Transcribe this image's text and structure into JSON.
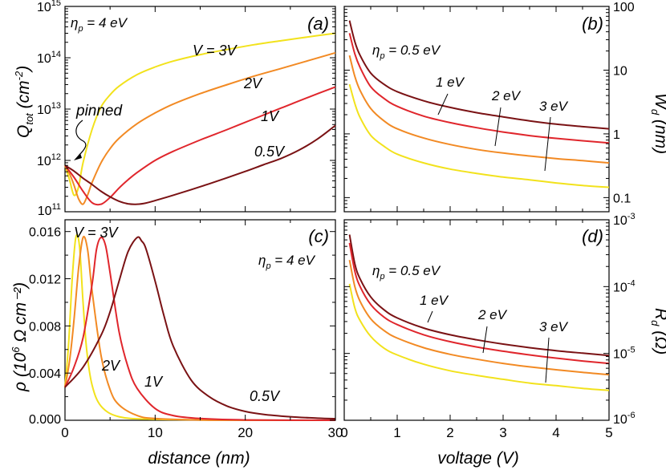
{
  "colors": {
    "yellow": "#f2e21c",
    "orange": "#f28a24",
    "red": "#e0262c",
    "maroon": "#7a1214"
  },
  "xlabel_left": "distance (nm)",
  "xlabel_right": "voltage (V)",
  "chart_data": [
    {
      "id": "a",
      "type": "line",
      "panel_label": "(a)",
      "title": "",
      "xlim": [
        0,
        30
      ],
      "ylim": [
        100000000000,
        1000000000000000
      ],
      "yscale": "log",
      "ylabel": {
        "main": "Q",
        "sub": "tot",
        "mid": " (cm",
        "sup": "-2",
        "end": ")"
      },
      "x_ticks": [
        0,
        10,
        20,
        30
      ],
      "y_ticks": [
        {
          "value": 100000000000,
          "base": "10",
          "exp": "11"
        },
        {
          "value": 1000000000000,
          "base": "10",
          "exp": "12"
        },
        {
          "value": 10000000000000,
          "base": "10",
          "exp": "13"
        },
        {
          "value": 100000000000000,
          "base": "10",
          "exp": "14"
        },
        {
          "value": 1000000000000000,
          "base": "10",
          "exp": "15"
        }
      ],
      "param": {
        "sym": "η",
        "sub": "p",
        "rest": " = 4 eV"
      },
      "annotations": {
        "pinned": "pinned"
      },
      "series": [
        {
          "name": "V = 3V",
          "label": "V = 3V",
          "color": "yellow",
          "x": [
            0,
            0.5,
            1,
            1.5,
            2,
            3,
            4,
            5,
            6,
            8,
            10,
            12,
            15,
            18,
            21,
            24,
            27,
            30
          ],
          "y": [
            800000000000,
            420000000000,
            210000000000,
            300000000000,
            900000000000,
            4000000000000,
            11000000000000,
            19000000000000,
            28000000000000,
            47000000000000,
            66000000000000,
            86000000000000,
            115000000000000,
            145000000000000,
            180000000000000,
            215000000000000,
            255000000000000,
            300000000000000
          ]
        },
        {
          "name": "2V",
          "label": "2V",
          "color": "orange",
          "x": [
            0,
            0.5,
            1,
            1.5,
            2,
            2.5,
            3,
            4,
            5,
            6,
            8,
            10,
            12,
            15,
            18,
            21,
            24,
            27,
            30
          ],
          "y": [
            800000000000,
            550000000000,
            330000000000,
            180000000000,
            140000000000,
            210000000000,
            370000000000,
            900000000000,
            1700000000000,
            2700000000000,
            5200000000000,
            8400000000000,
            12500000000000,
            20000000000000,
            30000000000000,
            44000000000000,
            62000000000000,
            88000000000000,
            125000000000000
          ]
        },
        {
          "name": "1V",
          "label": "1V",
          "color": "red",
          "x": [
            0,
            1,
            2,
            3,
            4,
            5,
            6,
            7,
            8,
            10,
            12,
            15,
            18,
            21,
            24,
            27,
            30
          ],
          "y": [
            800000000000,
            470000000000,
            250000000000,
            150000000000,
            140000000000,
            190000000000,
            290000000000,
            420000000000,
            580000000000,
            1000000000000,
            1500000000000,
            2500000000000,
            4000000000000,
            6500000000000,
            10500000000000,
            17000000000000,
            27000000000000
          ]
        },
        {
          "name": "0.5V",
          "label": "0.5V",
          "color": "maroon",
          "x": [
            0,
            1,
            2,
            3,
            4,
            5,
            6,
            7,
            8,
            9,
            10,
            12,
            14,
            16,
            18,
            20,
            22,
            24,
            26,
            28,
            30
          ],
          "y": [
            800000000000,
            620000000000,
            450000000000,
            340000000000,
            250000000000,
            195000000000,
            160000000000,
            143000000000,
            140000000000,
            148000000000,
            165000000000,
            210000000000,
            270000000000,
            350000000000,
            460000000000,
            610000000000,
            820000000000,
            1100000000000,
            1600000000000,
            2600000000000,
            4800000000000
          ]
        }
      ]
    },
    {
      "id": "b",
      "type": "line",
      "panel_label": "(b)",
      "title": "",
      "xlim": [
        0,
        5
      ],
      "ylim": [
        0.06,
        100
      ],
      "yscale": "log",
      "ylabel": {
        "main": "W",
        "sub": "d",
        "mid": " (nm)",
        "sup": "",
        "end": ""
      },
      "x_ticks": [
        0,
        1,
        2,
        3,
        4,
        5
      ],
      "y_ticks": [
        {
          "value": 0.1,
          "label": "0.1"
        },
        {
          "value": 1,
          "label": "1"
        },
        {
          "value": 10,
          "label": "10"
        },
        {
          "value": 100,
          "label": "100"
        }
      ],
      "param": {
        "sym": "η",
        "sub": "p",
        "rest": " = 0.5 eV"
      },
      "series": [
        {
          "name": "0.5 eV",
          "color": "maroon",
          "x": [
            0.1,
            0.2,
            0.3,
            0.5,
            0.75,
            1,
            1.5,
            2,
            2.5,
            3,
            3.5,
            4,
            4.5,
            5
          ],
          "y": [
            60,
            28,
            17,
            9,
            6,
            4.6,
            3.3,
            2.6,
            2.15,
            1.85,
            1.6,
            1.42,
            1.3,
            1.2
          ]
        },
        {
          "name": "1 eV",
          "color": "red",
          "x": [
            0.1,
            0.2,
            0.3,
            0.5,
            0.75,
            1,
            1.5,
            2,
            2.5,
            3,
            3.5,
            4,
            4.5,
            5
          ],
          "y": [
            38,
            18,
            11,
            5.5,
            3.6,
            2.7,
            1.9,
            1.5,
            1.25,
            1.07,
            0.94,
            0.85,
            0.78,
            0.72
          ]
        },
        {
          "name": "2 eV",
          "color": "orange",
          "x": [
            0.1,
            0.2,
            0.3,
            0.5,
            0.75,
            1,
            1.5,
            2,
            2.5,
            3,
            3.5,
            4,
            4.5,
            5
          ],
          "y": [
            17,
            8,
            4.8,
            2.5,
            1.6,
            1.2,
            0.86,
            0.68,
            0.57,
            0.5,
            0.45,
            0.41,
            0.38,
            0.35
          ]
        },
        {
          "name": "3 eV",
          "color": "yellow",
          "x": [
            0.1,
            0.2,
            0.3,
            0.5,
            0.75,
            1,
            1.5,
            2,
            2.5,
            3,
            3.5,
            4,
            4.5,
            5
          ],
          "y": [
            6,
            3,
            1.8,
            0.95,
            0.64,
            0.48,
            0.35,
            0.28,
            0.24,
            0.21,
            0.19,
            0.17,
            0.155,
            0.145
          ]
        }
      ],
      "curve_labels": [
        {
          "text": "1 eV",
          "at": [
            1.7,
            2.6
          ]
        },
        {
          "text": "2 eV",
          "at": [
            2.65,
            1.3
          ]
        },
        {
          "text": "3 eV",
          "at": [
            3.8,
            0.55
          ]
        }
      ]
    },
    {
      "id": "c",
      "type": "line",
      "panel_label": "(c)",
      "title": "",
      "xlim": [
        0,
        30
      ],
      "ylim": [
        0,
        0.017
      ],
      "yscale": "linear",
      "ylabel": {
        "main": "ρ",
        "sub": "",
        "mid": " (10",
        "sup": "6",
        "end": " Ω cm⁻²)"
      },
      "x_ticks": [
        0,
        10,
        20,
        30
      ],
      "y_ticks": [
        {
          "value": 0,
          "label": "0.000"
        },
        {
          "value": 0.004,
          "label": "0.004"
        },
        {
          "value": 0.008,
          "label": "0.008"
        },
        {
          "value": 0.012,
          "label": "0.012"
        },
        {
          "value": 0.016,
          "label": "0.016"
        }
      ],
      "param": {
        "sym": "η",
        "sub": "p",
        "rest": " = 4 eV"
      },
      "series": [
        {
          "name": "V = 3V",
          "label": "V = 3V",
          "color": "yellow",
          "x": [
            0,
            0.4,
            0.8,
            1.2,
            1.6,
            2,
            2.4,
            3,
            4,
            6,
            10,
            20,
            30
          ],
          "y": [
            0.0028,
            0.0065,
            0.012,
            0.0155,
            0.0148,
            0.01,
            0.006,
            0.003,
            0.0012,
            0.0003,
            8e-05,
            1e-05,
            0
          ]
        },
        {
          "name": "2V",
          "label": "2V",
          "color": "orange",
          "x": [
            0,
            0.5,
            1,
            1.5,
            2,
            2.5,
            3,
            4,
            5,
            6,
            8,
            10,
            15,
            20,
            30
          ],
          "y": [
            0.0028,
            0.005,
            0.0085,
            0.0128,
            0.0155,
            0.0145,
            0.011,
            0.0055,
            0.0026,
            0.0013,
            0.0004,
            0.00015,
            2e-05,
            5e-06,
            0
          ]
        },
        {
          "name": "1V",
          "label": "1V",
          "color": "red",
          "x": [
            0,
            1,
            2,
            3,
            3.5,
            4,
            4.5,
            5,
            6,
            7,
            8,
            10,
            12,
            15,
            20,
            30
          ],
          "y": [
            0.0028,
            0.0045,
            0.007,
            0.0115,
            0.0145,
            0.0155,
            0.0148,
            0.0125,
            0.0075,
            0.0045,
            0.0027,
            0.001,
            0.0004,
            0.00015,
            3e-05,
            0
          ]
        },
        {
          "name": "0.5V",
          "label": "0.5V",
          "color": "maroon",
          "x": [
            0,
            2,
            4,
            5,
            6,
            7,
            8,
            8.5,
            9,
            10,
            11,
            12,
            14,
            16,
            18,
            20,
            22,
            25,
            28,
            30
          ],
          "y": [
            0.0028,
            0.0045,
            0.0072,
            0.0092,
            0.0118,
            0.0143,
            0.0155,
            0.0152,
            0.0145,
            0.0118,
            0.0088,
            0.0063,
            0.0034,
            0.002,
            0.0012,
            0.00075,
            0.0005,
            0.0003,
            0.00018,
            0.00013
          ]
        }
      ]
    },
    {
      "id": "d",
      "type": "line",
      "panel_label": "(d)",
      "title": "",
      "xlim": [
        0,
        5
      ],
      "ylim": [
        1e-06,
        0.001
      ],
      "yscale": "log",
      "ylabel": {
        "main": "R",
        "sub": "d",
        "mid": " (Ω)",
        "sup": "",
        "end": ""
      },
      "x_ticks": [
        0,
        1,
        2,
        3,
        4,
        5
      ],
      "y_ticks": [
        {
          "value": 1e-06,
          "base": "10",
          "exp": "-6"
        },
        {
          "value": 1e-05,
          "base": "10",
          "exp": "-5"
        },
        {
          "value": 0.0001,
          "base": "10",
          "exp": "-4"
        },
        {
          "value": 0.001,
          "base": "10",
          "exp": "-3"
        }
      ],
      "param": {
        "sym": "η",
        "sub": "p",
        "rest": " = 0.5 eV"
      },
      "series": [
        {
          "name": "0.5 eV",
          "color": "maroon",
          "x": [
            0.1,
            0.2,
            0.3,
            0.5,
            0.75,
            1,
            1.5,
            2,
            2.5,
            3,
            3.5,
            4,
            4.5,
            5
          ],
          "y": [
            0.0006,
            0.00022,
            0.00013,
            7e-05,
            4.5e-05,
            3.4e-05,
            2.4e-05,
            1.9e-05,
            1.6e-05,
            1.38e-05,
            1.22e-05,
            1.1e-05,
            1.01e-05,
            9.3e-06
          ]
        },
        {
          "name": "1 eV",
          "color": "red",
          "x": [
            0.1,
            0.2,
            0.3,
            0.5,
            0.75,
            1,
            1.5,
            2,
            2.5,
            3,
            3.5,
            4,
            4.5,
            5
          ],
          "y": [
            0.00045,
            0.00017,
            0.0001,
            5.4e-05,
            3.5e-05,
            2.7e-05,
            1.9e-05,
            1.5e-05,
            1.25e-05,
            1.08e-05,
            9.5e-06,
            8.5e-06,
            7.7e-06,
            7.1e-06
          ]
        },
        {
          "name": "2 eV",
          "color": "orange",
          "x": [
            0.1,
            0.2,
            0.3,
            0.5,
            0.75,
            1,
            1.5,
            2,
            2.5,
            3,
            3.5,
            4,
            4.5,
            5
          ],
          "y": [
            0.00025,
            0.0001,
            6e-05,
            3.3e-05,
            2.2e-05,
            1.7e-05,
            1.22e-05,
            9.7e-06,
            8.2e-06,
            7.1e-06,
            6.3e-06,
            5.7e-06,
            5.2e-06,
            4.8e-06
          ]
        },
        {
          "name": "3 eV",
          "color": "yellow",
          "x": [
            0.1,
            0.2,
            0.3,
            0.5,
            0.75,
            1,
            1.5,
            2,
            2.5,
            3,
            3.5,
            4,
            4.5,
            5
          ],
          "y": [
            0.00011,
            4.8e-05,
            3.1e-05,
            1.8e-05,
            1.2e-05,
            9.5e-06,
            6.9e-06,
            5.5e-06,
            4.7e-06,
            4.1e-06,
            3.6e-06,
            3.3e-06,
            3e-06,
            2.8e-06
          ]
        }
      ],
      "curve_labels": [
        {
          "text": "1 eV",
          "at": [
            1.6,
            2.7e-05
          ]
        },
        {
          "text": "2 eV",
          "at": [
            2.6,
            1.7e-05
          ]
        },
        {
          "text": "3 eV",
          "at": [
            3.8,
            1.15e-05
          ]
        }
      ]
    }
  ]
}
